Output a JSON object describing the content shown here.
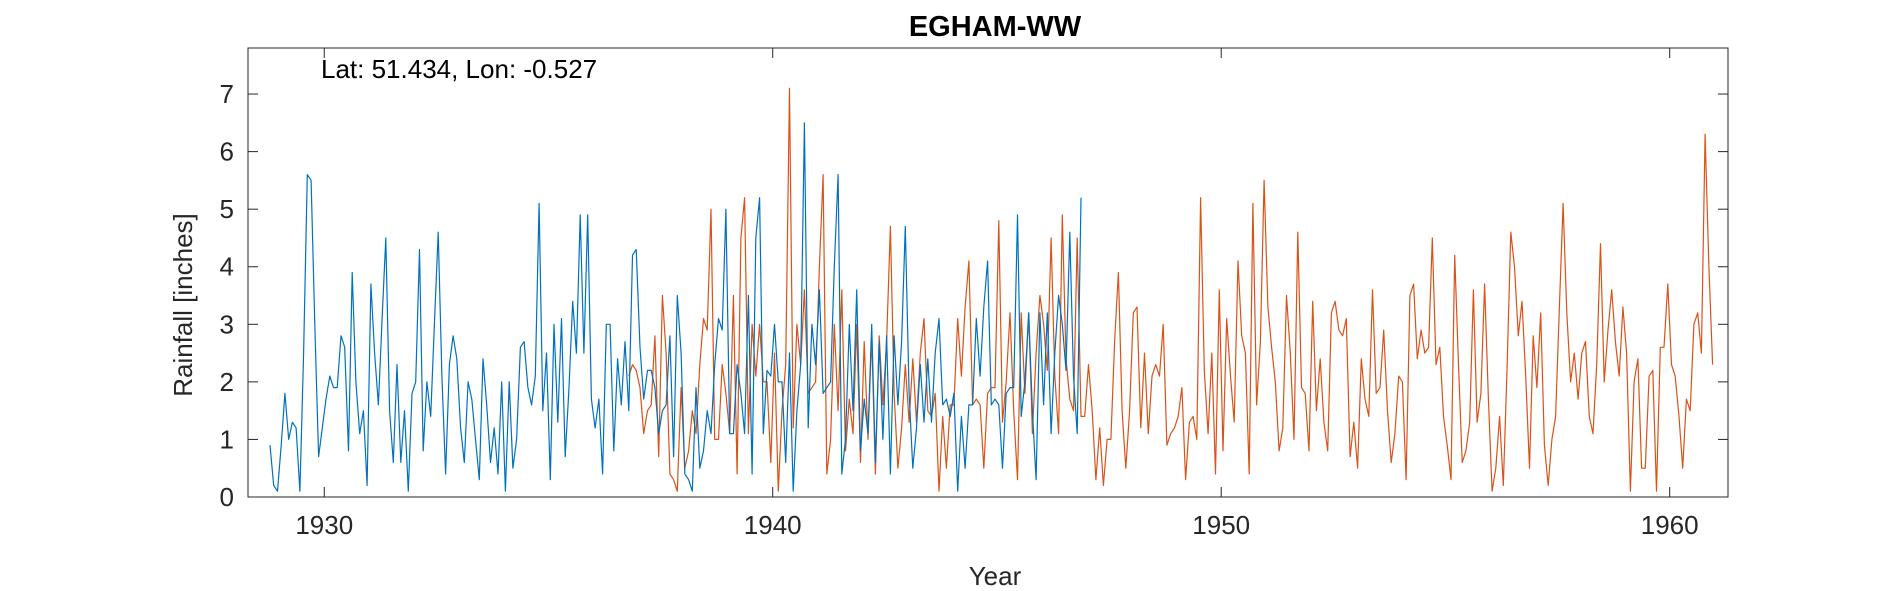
{
  "chart_data": {
    "type": "line",
    "title": "EGHAM-WW",
    "annotation": "Lat: 51.434, Lon: -0.527",
    "xlabel": "Year",
    "ylabel": "Rainfall [inches]",
    "xlim": [
      1928.3,
      1961.3
    ],
    "ylim": [
      0,
      7.8
    ],
    "x_ticks": [
      1930,
      1940,
      1950,
      1960
    ],
    "y_ticks": [
      0,
      1,
      2,
      3,
      4,
      5,
      6,
      7
    ],
    "grid": false,
    "legend": "none",
    "series": [
      {
        "color": "#0072BD",
        "x_start": 1928.79,
        "x_step": 0.0833333,
        "values": [
          0.9,
          0.2,
          0.1,
          0.9,
          1.8,
          1.0,
          1.3,
          1.2,
          0.1,
          2.5,
          5.6,
          5.5,
          3.0,
          0.7,
          1.2,
          1.7,
          2.1,
          1.9,
          1.9,
          2.8,
          2.6,
          0.8,
          3.9,
          2.0,
          1.1,
          1.5,
          0.2,
          3.7,
          2.5,
          1.6,
          3.1,
          4.5,
          1.5,
          0.6,
          2.3,
          0.6,
          1.5,
          0.1,
          1.8,
          2.0,
          4.3,
          0.8,
          2.0,
          1.4,
          3.0,
          4.6,
          2.1,
          0.4,
          2.3,
          2.8,
          2.4,
          1.2,
          0.6,
          2.0,
          1.7,
          1.0,
          0.3,
          2.4,
          1.6,
          0.6,
          1.2,
          0.4,
          2.0,
          0.1,
          2.0,
          0.5,
          1.0,
          2.6,
          2.7,
          1.9,
          1.6,
          2.1,
          5.1,
          1.5,
          2.5,
          0.3,
          3.0,
          1.3,
          3.1,
          0.7,
          1.9,
          3.4,
          2.5,
          4.9,
          2.5,
          4.9,
          1.7,
          1.2,
          1.7,
          0.4,
          3.0,
          3.0,
          0.8,
          2.4,
          1.6,
          2.7,
          1.5,
          4.2,
          4.3,
          2.6,
          1.7,
          2.2,
          2.2,
          1.9,
          1.1,
          1.5,
          1.6,
          2.8,
          0.7,
          3.5,
          2.5,
          0.4,
          0.3,
          0.1,
          1.9,
          0.5,
          0.8,
          1.5,
          1.1,
          2.3,
          3.1,
          2.9,
          5.0,
          1.1,
          1.1,
          2.3,
          1.8,
          1.1,
          3.5,
          0.4,
          4.5,
          5.2,
          1.1,
          2.2,
          2.1,
          3.0,
          2.0,
          2.0,
          0.6,
          2.5,
          0.1,
          1.5,
          2.3,
          6.5,
          1.2,
          3.0,
          2.3,
          3.6,
          1.8,
          1.9,
          2.0,
          4.0,
          5.6,
          0.4,
          1.0,
          3.0,
          1.5,
          3.6,
          0.8,
          1.7,
          1.1,
          3.0,
          0.6,
          2.7,
          1.0,
          2.8,
          0.4,
          2.8,
          1.6,
          2.7,
          4.7,
          1.8,
          0.5,
          1.2,
          2.3,
          1.3,
          2.4,
          1.3,
          2.5,
          3.1,
          1.6,
          1.7,
          1.4,
          1.8,
          0.1,
          1.4,
          0.5,
          1.6,
          1.6,
          3.1,
          2.1,
          3.3,
          4.1,
          1.6,
          1.7,
          1.6,
          0.5,
          1.8,
          1.9,
          1.9,
          4.9,
          1.4,
          2.0,
          3.2,
          1.5,
          0.3,
          3.2,
          1.6,
          3.2,
          1.1,
          2.5,
          3.5,
          3.0,
          2.2,
          4.6,
          2.1,
          1.1,
          5.2
        ]
      },
      {
        "color": "#D95319",
        "x_start": 1936.79,
        "x_step": 0.0833333,
        "values": [
          2.1,
          2.3,
          2.2,
          1.9,
          1.1,
          1.5,
          1.6,
          2.8,
          0.7,
          3.5,
          2.5,
          0.4,
          0.3,
          0.1,
          1.9,
          0.5,
          0.8,
          1.5,
          1.1,
          2.3,
          3.1,
          2.9,
          5.0,
          1.0,
          1.0,
          2.3,
          1.8,
          1.1,
          3.5,
          0.4,
          4.5,
          5.2,
          1.1,
          3.0,
          2.1,
          3.0,
          2.0,
          2.0,
          0.6,
          2.5,
          0.1,
          1.5,
          2.3,
          7.1,
          1.2,
          3.0,
          2.3,
          3.6,
          1.8,
          1.9,
          2.0,
          4.0,
          5.6,
          0.4,
          1.0,
          3.0,
          1.5,
          3.6,
          0.8,
          1.7,
          1.1,
          3.0,
          0.6,
          2.7,
          1.0,
          2.8,
          0.4,
          2.8,
          1.6,
          2.7,
          4.7,
          1.8,
          0.5,
          1.2,
          2.3,
          1.3,
          2.4,
          1.3,
          2.5,
          3.1,
          1.5,
          1.4,
          1.8,
          0.1,
          1.4,
          0.5,
          1.6,
          1.6,
          3.1,
          2.1,
          3.3,
          4.1,
          1.6,
          1.7,
          1.6,
          0.5,
          1.8,
          1.9,
          1.9,
          4.8,
          1.3,
          2.0,
          3.2,
          1.5,
          0.3,
          3.2,
          1.8,
          3.2,
          1.1,
          2.5,
          3.5,
          3.0,
          2.2,
          4.5,
          2.1,
          1.1,
          4.9,
          2.4,
          1.7,
          1.5,
          4.5,
          1.4,
          1.4,
          2.3,
          1.5,
          0.3,
          1.2,
          0.2,
          1.0,
          1.0,
          2.7,
          3.9,
          1.5,
          0.5,
          1.5,
          3.2,
          3.3,
          1.2,
          2.5,
          1.1,
          2.1,
          2.3,
          2.1,
          3.0,
          0.9,
          1.1,
          1.2,
          1.4,
          1.9,
          0.3,
          1.3,
          1.4,
          1.0,
          5.2,
          2.2,
          1.1,
          2.5,
          0.4,
          3.6,
          0.8,
          3.1,
          2.1,
          1.3,
          4.1,
          2.8,
          2.5,
          0.4,
          5.1,
          1.6,
          2.7,
          5.5,
          3.3,
          2.6,
          2.0,
          0.8,
          1.2,
          3.5,
          2.5,
          1.0,
          4.6,
          1.9,
          1.8,
          0.8,
          3.4,
          1.5,
          2.4,
          1.3,
          0.8,
          3.2,
          3.4,
          2.9,
          2.8,
          3.1,
          0.7,
          1.3,
          0.5,
          2.4,
          1.7,
          1.4,
          3.6,
          1.8,
          1.9,
          2.9,
          1.5,
          0.6,
          1.1,
          2.1,
          2.0,
          0.3,
          3.5,
          3.7,
          2.4,
          2.9,
          2.5,
          2.6,
          4.5,
          2.3,
          2.6,
          1.4,
          0.9,
          0.3,
          4.2,
          2.3,
          0.6,
          0.8,
          1.3,
          3.6,
          1.3,
          1.8,
          3.7,
          1.7,
          0.1,
          0.5,
          1.4,
          0.2,
          2.2,
          4.6,
          4.0,
          2.8,
          3.4,
          2.1,
          0.5,
          2.8,
          1.9,
          3.2,
          0.9,
          0.2,
          1.0,
          1.4,
          3.3,
          5.1,
          3.2,
          2.0,
          2.5,
          1.7,
          2.5,
          2.7,
          1.4,
          1.1,
          2.3,
          4.4,
          2.0,
          2.9,
          3.6,
          2.7,
          2.1,
          3.3,
          2.5,
          0.1,
          2.0,
          2.4,
          0.5,
          0.5,
          2.1,
          2.2,
          0.1,
          2.6,
          2.6,
          3.7,
          2.3,
          2.1,
          1.4,
          0.5,
          1.7,
          1.5,
          3.0,
          3.2,
          2.5,
          6.3,
          4.0,
          2.3
        ]
      }
    ]
  }
}
